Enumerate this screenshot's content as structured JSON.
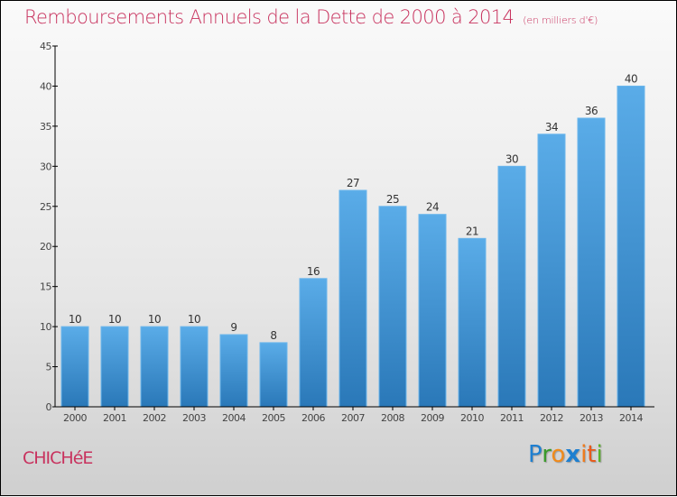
{
  "chart_data": {
    "type": "bar",
    "title": "Remboursements Annuels de la Dette de 2000 à 2014",
    "subtitle": "(en milliers d'€)",
    "xlabel": "",
    "ylabel": "",
    "categories": [
      "2000",
      "2001",
      "2002",
      "2003",
      "2004",
      "2005",
      "2006",
      "2007",
      "2008",
      "2009",
      "2010",
      "2011",
      "2012",
      "2013",
      "2014"
    ],
    "values": [
      10,
      10,
      10,
      10,
      9,
      8,
      16,
      27,
      25,
      24,
      21,
      30,
      34,
      36,
      40
    ],
    "ylim": [
      0,
      45
    ],
    "yticks": [
      0,
      5,
      10,
      15,
      20,
      25,
      30,
      35,
      40,
      45
    ],
    "grid": false,
    "legend": "none",
    "bar_color_top": "#5aace8",
    "bar_color_bottom": "#2a78b8"
  },
  "footer": {
    "commune": "CHICHéE",
    "logo_letters": [
      {
        "ch": "P",
        "color": "#1e7fd0"
      },
      {
        "ch": "r",
        "color": "#3a9a2a"
      },
      {
        "ch": "o",
        "color": "#f08a1a"
      },
      {
        "ch": "x",
        "color": "#1e7fd0"
      },
      {
        "ch": "i",
        "color": "#f07a1a"
      },
      {
        "ch": "t",
        "color": "#e85a1a"
      },
      {
        "ch": "i",
        "color": "#5ab02a"
      }
    ]
  },
  "colors": {
    "title": "#c8325e",
    "axis": "#000000"
  }
}
